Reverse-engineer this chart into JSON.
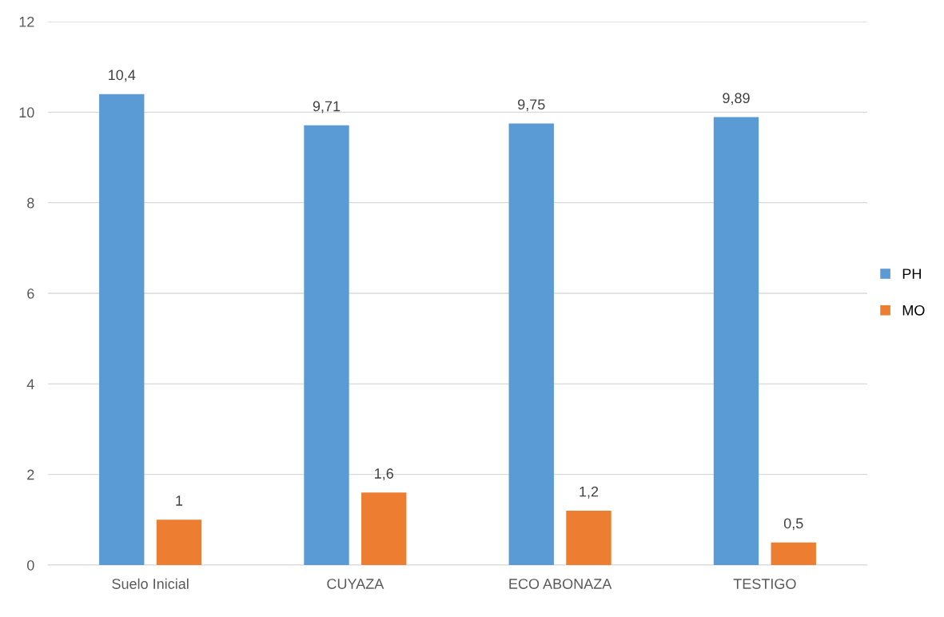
{
  "chart_data": {
    "type": "bar",
    "categories": [
      "Suelo Inicial",
      "CUYAZA",
      "ECO ABONAZA",
      "TESTIGO"
    ],
    "series": [
      {
        "name": "PH",
        "color": "#5b9bd5",
        "values": [
          10.4,
          9.71,
          9.75,
          9.89
        ],
        "value_labels": [
          "10,4",
          "9,71",
          "9,75",
          "9,89"
        ]
      },
      {
        "name": "MO",
        "color": "#ed7d31",
        "values": [
          1,
          1.6,
          1.2,
          0.5
        ],
        "value_labels": [
          "1",
          "1,6",
          "1,2",
          "0,5"
        ]
      }
    ],
    "ylim": [
      0,
      12
    ],
    "yticks": [
      0,
      2,
      4,
      6,
      8,
      10,
      12
    ],
    "grid": "y",
    "legend": "right"
  }
}
